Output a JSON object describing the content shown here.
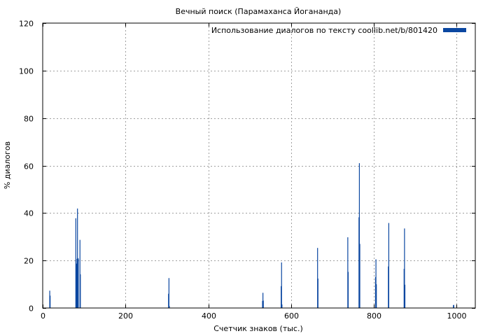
{
  "chart_data": {
    "type": "bar",
    "title": "Вечный поиск (Парамаханса Йогананда)",
    "xlabel": "Счетчик знаков (тыс.)",
    "ylabel": "% диалогов",
    "xlim": [
      0,
      1045
    ],
    "ylim": [
      0,
      120
    ],
    "xticks": [
      0,
      200,
      400,
      600,
      800,
      1000
    ],
    "yticks": [
      0,
      20,
      40,
      60,
      80,
      100,
      120
    ],
    "grid": true,
    "legend_position": "top-right",
    "series": [
      {
        "name": "Использование диалогов по тексту coollib.net/b/801420",
        "color": "#0b47a1",
        "points": [
          [
            16,
            7.3
          ],
          [
            17,
            5.2
          ],
          [
            79,
            37.8
          ],
          [
            80,
            18.6
          ],
          [
            81,
            18.7
          ],
          [
            82,
            20.7
          ],
          [
            83,
            41.9
          ],
          [
            84,
            21.0
          ],
          [
            85,
            20.8
          ],
          [
            89,
            28.7
          ],
          [
            90,
            14.2
          ],
          [
            303,
            6.0
          ],
          [
            304,
            12.6
          ],
          [
            305,
            0.8
          ],
          [
            530,
            3.0
          ],
          [
            531,
            6.4
          ],
          [
            532,
            3.1
          ],
          [
            575,
            9.2
          ],
          [
            576,
            19.2
          ],
          [
            577,
            1.5
          ],
          [
            663,
            25.3
          ],
          [
            664,
            12.4
          ],
          [
            736,
            29.8
          ],
          [
            737,
            15.2
          ],
          [
            763,
            38.2
          ],
          [
            764,
            61.0
          ],
          [
            765,
            27.0
          ],
          [
            803,
            13.0
          ],
          [
            804,
            20.5
          ],
          [
            805,
            10.0
          ],
          [
            834,
            17.5
          ],
          [
            835,
            35.8
          ],
          [
            872,
            16.5
          ],
          [
            873,
            33.5
          ],
          [
            874,
            9.8
          ],
          [
            991,
            1.2
          ],
          [
            992,
            1.3
          ]
        ]
      }
    ]
  }
}
